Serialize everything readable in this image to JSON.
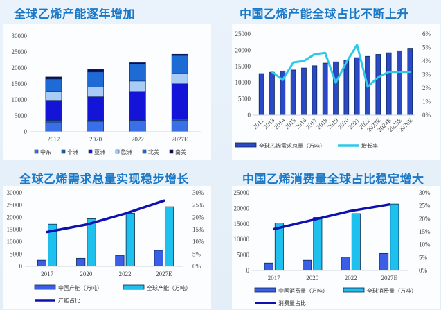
{
  "titles": [
    "全球乙烯产能逐年增加",
    "中国乙烯产能全球占比不断上升",
    "全球乙烯需求总量实现稳步增长",
    "中国乙烯消费量全球占比稳定增大"
  ],
  "chart_data": [
    {
      "type": "bar",
      "stacked": true,
      "categories": [
        "2017",
        "2020",
        "2022",
        "2027E"
      ],
      "ylim": [
        0,
        30000
      ],
      "ytick_step": 5000,
      "legend_position": "bottom",
      "series": [
        {
          "name": "中东",
          "values": [
            3000,
            3250,
            3400,
            3500
          ],
          "color": "#3b6fe8"
        },
        {
          "name": "非洲",
          "values": [
            600,
            350,
            200,
            450
          ],
          "color": "#1f5fa0"
        },
        {
          "name": "亚洲",
          "values": [
            6250,
            7350,
            9050,
            11100
          ],
          "color": "#1414d8"
        },
        {
          "name": "欧洲",
          "values": [
            2800,
            3050,
            3250,
            3200
          ],
          "color": "#a8ccf5"
        },
        {
          "name": "北美",
          "values": [
            3900,
            4750,
            5250,
            5650
          ],
          "color": "#1e6bd6"
        },
        {
          "name": "南美",
          "values": [
            650,
            800,
            500,
            400
          ],
          "color": "#0a0a50"
        }
      ]
    },
    {
      "type": "bar+line",
      "categories": [
        "2012",
        "2013",
        "2014",
        "2015",
        "2016",
        "2017",
        "2018",
        "2019",
        "2020",
        "2021",
        "2022",
        "2023E",
        "2024E",
        "2025E",
        "2026E"
      ],
      "ylim": [
        0,
        25000
      ],
      "ytick_step": 5000,
      "y2lim": [
        0,
        6
      ],
      "y2tick_step": 1,
      "y2_unit": "%",
      "legend_position": "bottom",
      "series": [
        {
          "name": "全球乙烯需求总量（万吨）",
          "kind": "bar",
          "values": [
            12800,
            13200,
            13600,
            13900,
            14500,
            15200,
            16000,
            16400,
            17000,
            17700,
            18100,
            18700,
            19200,
            19800,
            20600
          ],
          "color": "#2a48c8"
        },
        {
          "name": "增长率",
          "kind": "line",
          "axis": "right",
          "values": [
            null,
            3.2,
            2.6,
            3.9,
            4.0,
            4.5,
            4.6,
            2.4,
            3.9,
            5.2,
            2.1,
            2.8,
            3.2,
            3.2,
            3.2
          ],
          "color": "#30c8e8"
        }
      ]
    },
    {
      "type": "bar+line",
      "categories": [
        "2017",
        "2020",
        "2022",
        "2027E"
      ],
      "ylim": [
        0,
        30000
      ],
      "ytick_step": 5000,
      "y2lim": [
        0,
        30
      ],
      "y2tick_step": 5,
      "y2_unit": "%",
      "legend_position": "bottom",
      "series": [
        {
          "name": "中国产能（万吨）",
          "kind": "bar",
          "values": [
            2500,
            3300,
            4500,
            6500
          ],
          "color": "#3a5ee8"
        },
        {
          "name": "全球产能（万吨）",
          "kind": "bar",
          "values": [
            17200,
            19400,
            21700,
            24300
          ],
          "color": "#1ec0ee"
        },
        {
          "name": "产能占比",
          "kind": "line",
          "axis": "right",
          "values": [
            14,
            17,
            21.5,
            26.8
          ],
          "color": "#1010b0"
        }
      ]
    },
    {
      "type": "bar+line",
      "categories": [
        "2017",
        "2020",
        "2022",
        "2027E"
      ],
      "ylim": [
        0,
        25000
      ],
      "ytick_step": 5000,
      "y2lim": [
        0,
        30
      ],
      "y2tick_step": 5,
      "y2_unit": "%",
      "legend_position": "bottom",
      "series": [
        {
          "name": "中国消费量（万吨）",
          "kind": "bar",
          "values": [
            2400,
            3300,
            4300,
            5500
          ],
          "color": "#3a5ee8"
        },
        {
          "name": "全球消费量（万吨）",
          "kind": "bar",
          "values": [
            15300,
            17100,
            18300,
            21400
          ],
          "color": "#1ec0ee"
        },
        {
          "name": "消费量占比",
          "kind": "line",
          "axis": "right",
          "values": [
            16,
            19.5,
            23,
            25.5
          ],
          "color": "#1010b0"
        }
      ]
    }
  ]
}
